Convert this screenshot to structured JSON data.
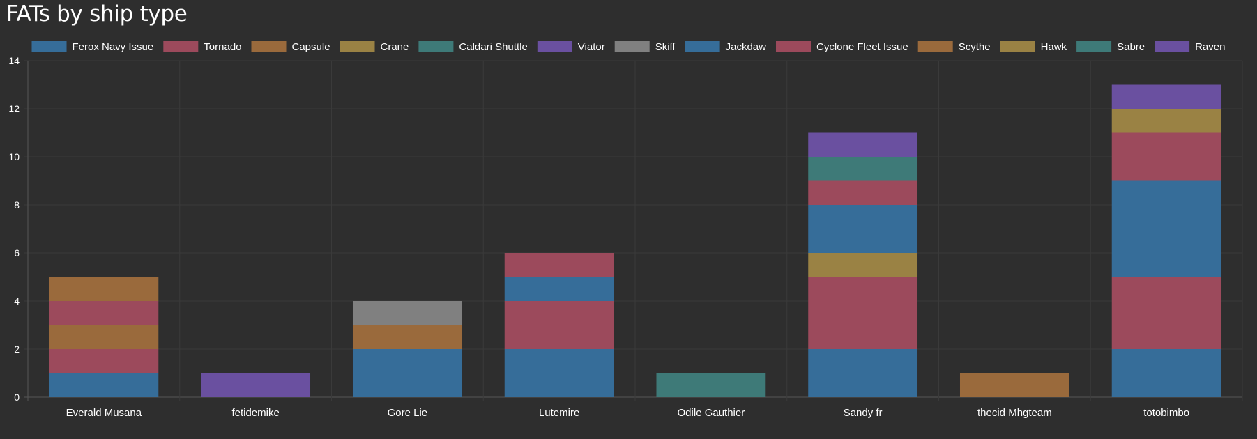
{
  "chart_data": {
    "type": "bar",
    "stacked": true,
    "title": "FATs by ship type",
    "xlabel": "",
    "ylabel": "",
    "ylim": [
      0,
      14
    ],
    "yticks": [
      0,
      2,
      4,
      6,
      8,
      10,
      12,
      14
    ],
    "grid": true,
    "legend_position": "top",
    "categories": [
      "Everald Musana",
      "fetidemike",
      "Gore Lie",
      "Lutemire",
      "Odile Gauthier",
      "Sandy fr",
      "thecid Mhgteam",
      "totobimbo"
    ],
    "series": [
      {
        "name": "Ferox Navy Issue",
        "color": "#366d99",
        "values": [
          1,
          0,
          2,
          2,
          0,
          2,
          0,
          2
        ]
      },
      {
        "name": "Tornado",
        "color": "#9c4a5c",
        "values": [
          1,
          0,
          0,
          2,
          0,
          3,
          0,
          3
        ]
      },
      {
        "name": "Capsule",
        "color": "#9a6a3c",
        "values": [
          1,
          0,
          1,
          0,
          0,
          0,
          1,
          0
        ]
      },
      {
        "name": "Crane",
        "color": "#9a8244",
        "values": [
          0,
          0,
          0,
          0,
          0,
          1,
          0,
          0
        ]
      },
      {
        "name": "Caldari Shuttle",
        "color": "#3e7a78",
        "values": [
          0,
          0,
          0,
          0,
          1,
          0,
          0,
          0
        ]
      },
      {
        "name": "Viator",
        "color": "#6a50a0",
        "values": [
          0,
          1,
          0,
          0,
          0,
          0,
          0,
          0
        ]
      },
      {
        "name": "Skiff",
        "color": "#808080",
        "values": [
          0,
          0,
          1,
          0,
          0,
          0,
          0,
          0
        ]
      },
      {
        "name": "Jackdaw",
        "color": "#366d99",
        "values": [
          0,
          0,
          0,
          1,
          0,
          2,
          0,
          4
        ]
      },
      {
        "name": "Cyclone Fleet Issue",
        "color": "#9c4a5c",
        "values": [
          1,
          0,
          0,
          1,
          0,
          1,
          0,
          2
        ]
      },
      {
        "name": "Scythe",
        "color": "#9a6a3c",
        "values": [
          1,
          0,
          0,
          0,
          0,
          0,
          0,
          0
        ]
      },
      {
        "name": "Hawk",
        "color": "#9a8244",
        "values": [
          0,
          0,
          0,
          0,
          0,
          0,
          0,
          1
        ]
      },
      {
        "name": "Sabre",
        "color": "#3e7a78",
        "values": [
          0,
          0,
          0,
          0,
          0,
          1,
          0,
          0
        ]
      },
      {
        "name": "Raven",
        "color": "#6a50a0",
        "values": [
          0,
          0,
          0,
          0,
          0,
          1,
          0,
          1
        ]
      }
    ]
  }
}
